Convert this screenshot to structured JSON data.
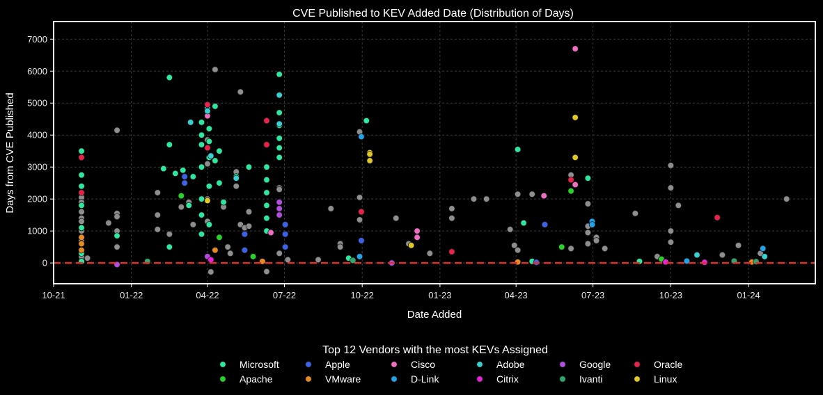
{
  "chart_data": {
    "type": "scatter",
    "title": "CVE Published to KEV Added Date (Distribution of Days)",
    "xlabel": "Date Added",
    "ylabel": "Days from CVE Published",
    "x_range": [
      "2021-10-01",
      "2024-03-20"
    ],
    "ylim": [
      -650,
      7550
    ],
    "x_ticks": [
      {
        "label": "10-21",
        "date": "2021-10-01"
      },
      {
        "label": "01-22",
        "date": "2022-01-01"
      },
      {
        "label": "04-22",
        "date": "2022-04-01"
      },
      {
        "label": "07-22",
        "date": "2022-07-01"
      },
      {
        "label": "10-22",
        "date": "2022-10-01"
      },
      {
        "label": "01-23",
        "date": "2023-01-01"
      },
      {
        "label": "04-23",
        "date": "2023-04-01"
      },
      {
        "label": "07-23",
        "date": "2023-07-01"
      },
      {
        "label": "10-23",
        "date": "2023-10-01"
      },
      {
        "label": "01-24",
        "date": "2024-01-01"
      }
    ],
    "y_ticks": [
      0,
      1000,
      2000,
      3000,
      4000,
      5000,
      6000,
      7000
    ],
    "grid": true,
    "reference_line": {
      "y": 0,
      "color": "#e0302e",
      "style": "dashed"
    },
    "legend": {
      "title": "Top 12 Vendors with the most KEVs Assigned",
      "placement": "bottom-center",
      "columns": 6
    },
    "other_color": "#8e8e8e",
    "series": [
      {
        "name": "Microsoft",
        "color": "#2ee8a0",
        "points": [
          [
            "2021-11-03",
            3500
          ],
          [
            "2021-11-03",
            2750
          ],
          [
            "2021-11-03",
            2400
          ],
          [
            "2021-11-03",
            1800
          ],
          [
            "2021-11-03",
            1100
          ],
          [
            "2021-11-03",
            300
          ],
          [
            "2021-11-03",
            50
          ],
          [
            "2021-12-15",
            850
          ],
          [
            "2022-02-08",
            2950
          ],
          [
            "2022-02-15",
            5800
          ],
          [
            "2022-02-15",
            3700
          ],
          [
            "2022-02-15",
            500
          ],
          [
            "2022-02-22",
            2800
          ],
          [
            "2022-03-03",
            2900
          ],
          [
            "2022-03-10",
            1800
          ],
          [
            "2022-03-15",
            2700
          ],
          [
            "2022-03-25",
            4400
          ],
          [
            "2022-03-25",
            4000
          ],
          [
            "2022-03-25",
            3700
          ],
          [
            "2022-03-25",
            3000
          ],
          [
            "2022-03-25",
            2000
          ],
          [
            "2022-03-25",
            1500
          ],
          [
            "2022-03-25",
            900
          ],
          [
            "2022-04-03",
            4200
          ],
          [
            "2022-04-03",
            3800
          ],
          [
            "2022-04-03",
            3300
          ],
          [
            "2022-04-03",
            2400
          ],
          [
            "2022-04-03",
            1200
          ],
          [
            "2022-04-10",
            4900
          ],
          [
            "2022-04-10",
            3200
          ],
          [
            "2022-04-15",
            3500
          ],
          [
            "2022-04-15",
            2500
          ],
          [
            "2022-04-20",
            1900
          ],
          [
            "2022-05-05",
            2700
          ],
          [
            "2022-05-20",
            3000
          ],
          [
            "2022-06-10",
            3000
          ],
          [
            "2022-06-10",
            2600
          ],
          [
            "2022-06-10",
            2200
          ],
          [
            "2022-06-10",
            1800
          ],
          [
            "2022-06-10",
            1400
          ],
          [
            "2022-06-10",
            1000
          ],
          [
            "2022-06-25",
            5900
          ],
          [
            "2022-06-25",
            4700
          ],
          [
            "2022-06-25",
            4300
          ],
          [
            "2022-06-25",
            3900
          ],
          [
            "2022-06-25",
            3600
          ],
          [
            "2022-06-25",
            3300
          ],
          [
            "2022-09-15",
            150
          ],
          [
            "2022-10-06",
            4450
          ],
          [
            "2023-04-03",
            3550
          ],
          [
            "2023-04-10",
            1250
          ],
          [
            "2023-06-25",
            2650
          ],
          [
            "2023-04-20",
            50
          ],
          [
            "2023-08-25",
            50
          ]
        ]
      },
      {
        "name": "Apple",
        "color": "#3d62e8",
        "points": [
          [
            "2022-03-05",
            2700
          ],
          [
            "2022-03-05",
            2500
          ],
          [
            "2022-05-15",
            900
          ],
          [
            "2022-05-15",
            400
          ],
          [
            "2022-07-02",
            1200
          ],
          [
            "2022-07-02",
            900
          ],
          [
            "2022-07-02",
            500
          ],
          [
            "2022-09-30",
            700
          ],
          [
            "2023-05-05",
            1200
          ],
          [
            "2023-04-25",
            20
          ]
        ]
      },
      {
        "name": "Cisco",
        "color": "#ee6fc0",
        "points": [
          [
            "2022-04-01",
            4600
          ],
          [
            "2022-06-15",
            950
          ],
          [
            "2022-12-05",
            1000
          ],
          [
            "2022-12-05",
            800
          ],
          [
            "2023-05-04",
            2100
          ],
          [
            "2023-06-10",
            6700
          ],
          [
            "2023-06-10",
            2450
          ]
        ]
      },
      {
        "name": "Adobe",
        "color": "#3ad0d0",
        "points": [
          [
            "2022-04-01",
            4850
          ],
          [
            "2022-04-01",
            4750
          ],
          [
            "2022-03-12",
            4400
          ],
          [
            "2022-04-05",
            3350
          ],
          [
            "2022-05-05",
            2650
          ],
          [
            "2022-06-25",
            5250
          ],
          [
            "2022-06-25",
            4350
          ],
          [
            "2023-11-01",
            250
          ],
          [
            "2024-01-20",
            200
          ]
        ]
      },
      {
        "name": "Google",
        "color": "#b14ee0",
        "points": [
          [
            "2022-06-25",
            1900
          ],
          [
            "2022-06-25",
            1700
          ],
          [
            "2022-06-25",
            1500
          ],
          [
            "2022-04-01",
            200
          ],
          [
            "2021-12-15",
            -50
          ],
          [
            "2022-11-05",
            0
          ]
        ]
      },
      {
        "name": "Oracle",
        "color": "#e8224a",
        "points": [
          [
            "2021-11-03",
            3300
          ],
          [
            "2021-11-03",
            2200
          ],
          [
            "2022-04-01",
            4950
          ],
          [
            "2022-04-01",
            3600
          ],
          [
            "2022-06-10",
            3700
          ],
          [
            "2022-09-30",
            1600
          ],
          [
            "2023-01-15",
            350
          ],
          [
            "2023-06-05",
            2600
          ],
          [
            "2023-11-25",
            1420
          ],
          [
            "2022-06-10",
            4450
          ]
        ]
      },
      {
        "name": "Apache",
        "color": "#28d22a",
        "points": [
          [
            "2022-03-01",
            2100
          ],
          [
            "2022-04-15",
            800
          ],
          [
            "2022-05-25",
            200
          ],
          [
            "2023-05-25",
            500
          ],
          [
            "2023-06-05",
            2250
          ],
          [
            "2023-09-20",
            120
          ]
        ]
      },
      {
        "name": "VMware",
        "color": "#e88a22",
        "points": [
          [
            "2021-11-03",
            800
          ],
          [
            "2021-11-03",
            600
          ],
          [
            "2021-11-03",
            400
          ],
          [
            "2022-04-10",
            400
          ],
          [
            "2022-06-05",
            50
          ],
          [
            "2023-04-03",
            30
          ],
          [
            "2024-01-05",
            30
          ]
        ]
      },
      {
        "name": "D-Link",
        "color": "#22a2e8",
        "points": [
          [
            "2022-09-30",
            3950
          ],
          [
            "2022-09-28",
            200
          ],
          [
            "2023-06-30",
            1300
          ],
          [
            "2023-06-30",
            1200
          ],
          [
            "2024-01-18",
            450
          ],
          [
            "2023-10-20",
            60
          ]
        ]
      },
      {
        "name": "Citrix",
        "color": "#e822d8",
        "points": [
          [
            "2022-04-05",
            100
          ],
          [
            "2023-09-25",
            30
          ],
          [
            "2023-11-10",
            20
          ]
        ]
      },
      {
        "name": "Ivanti",
        "color": "#2fa870",
        "points": [
          [
            "2022-01-20",
            50
          ],
          [
            "2022-09-20",
            80
          ],
          [
            "2023-12-15",
            60
          ],
          [
            "2024-01-10",
            40
          ]
        ]
      },
      {
        "name": "Linux",
        "color": "#e0c82a",
        "points": [
          [
            "2022-04-01",
            1950
          ],
          [
            "2022-10-10",
            3450
          ],
          [
            "2022-10-10",
            3400
          ],
          [
            "2022-10-10",
            3200
          ],
          [
            "2022-11-28",
            550
          ],
          [
            "2023-06-10",
            4550
          ],
          [
            "2023-06-10",
            3300
          ]
        ]
      }
    ],
    "other_points": [
      [
        "2021-11-03",
        2050
      ],
      [
        "2021-11-03",
        1900
      ],
      [
        "2021-11-03",
        1600
      ],
      [
        "2021-11-03",
        1400
      ],
      [
        "2021-11-03",
        1300
      ],
      [
        "2021-11-03",
        1000
      ],
      [
        "2021-11-03",
        700
      ],
      [
        "2021-11-03",
        200
      ],
      [
        "2021-11-10",
        150
      ],
      [
        "2021-12-05",
        1250
      ],
      [
        "2021-12-15",
        4150
      ],
      [
        "2021-12-15",
        1550
      ],
      [
        "2021-12-15",
        1450
      ],
      [
        "2021-12-15",
        1000
      ],
      [
        "2021-12-15",
        500
      ],
      [
        "2022-02-01",
        2200
      ],
      [
        "2022-02-01",
        1500
      ],
      [
        "2022-02-01",
        1050
      ],
      [
        "2022-02-15",
        900
      ],
      [
        "2022-03-01",
        1750
      ],
      [
        "2022-03-10",
        1900
      ],
      [
        "2022-03-15",
        1200
      ],
      [
        "2022-04-05",
        -280
      ],
      [
        "2022-04-10",
        6050
      ],
      [
        "2022-04-01",
        3850
      ],
      [
        "2022-04-01",
        3100
      ],
      [
        "2022-04-01",
        2000
      ],
      [
        "2022-04-01",
        1300
      ],
      [
        "2022-04-20",
        1750
      ],
      [
        "2022-04-25",
        500
      ],
      [
        "2022-04-28",
        300
      ],
      [
        "2022-05-05",
        2850
      ],
      [
        "2022-05-05",
        2400
      ],
      [
        "2022-05-10",
        5350
      ],
      [
        "2022-05-10",
        1200
      ],
      [
        "2022-05-15",
        1100
      ],
      [
        "2022-05-20",
        1150
      ],
      [
        "2022-05-20",
        1600
      ],
      [
        "2022-06-10",
        -270
      ],
      [
        "2022-06-25",
        2350
      ],
      [
        "2022-06-25",
        2300
      ],
      [
        "2022-06-25",
        300
      ],
      [
        "2022-07-05",
        100
      ],
      [
        "2022-08-10",
        100
      ],
      [
        "2022-08-25",
        1700
      ],
      [
        "2022-09-05",
        600
      ],
      [
        "2022-09-05",
        500
      ],
      [
        "2022-09-28",
        4100
      ],
      [
        "2022-09-28",
        2050
      ],
      [
        "2022-09-28",
        1350
      ],
      [
        "2022-11-10",
        1400
      ],
      [
        "2022-11-25",
        600
      ],
      [
        "2022-12-20",
        300
      ],
      [
        "2023-01-15",
        1700
      ],
      [
        "2023-01-15",
        1400
      ],
      [
        "2023-02-10",
        2000
      ],
      [
        "2023-02-25",
        2000
      ],
      [
        "2023-03-25",
        1050
      ],
      [
        "2023-03-30",
        550
      ],
      [
        "2023-04-03",
        2150
      ],
      [
        "2023-04-03",
        400
      ],
      [
        "2023-04-20",
        2150
      ],
      [
        "2023-06-05",
        2750
      ],
      [
        "2023-06-05",
        450
      ],
      [
        "2023-06-25",
        1850
      ],
      [
        "2023-06-25",
        1150
      ],
      [
        "2023-06-25",
        950
      ],
      [
        "2023-06-25",
        600
      ],
      [
        "2023-07-05",
        800
      ],
      [
        "2023-07-05",
        700
      ],
      [
        "2023-07-15",
        450
      ],
      [
        "2023-08-20",
        1550
      ],
      [
        "2023-09-15",
        200
      ],
      [
        "2023-10-01",
        3050
      ],
      [
        "2023-10-01",
        2350
      ],
      [
        "2023-10-01",
        1000
      ],
      [
        "2023-10-01",
        650
      ],
      [
        "2023-10-10",
        1800
      ],
      [
        "2023-12-01",
        250
      ],
      [
        "2023-12-20",
        550
      ],
      [
        "2024-01-15",
        300
      ],
      [
        "2024-02-15",
        2000
      ]
    ]
  }
}
